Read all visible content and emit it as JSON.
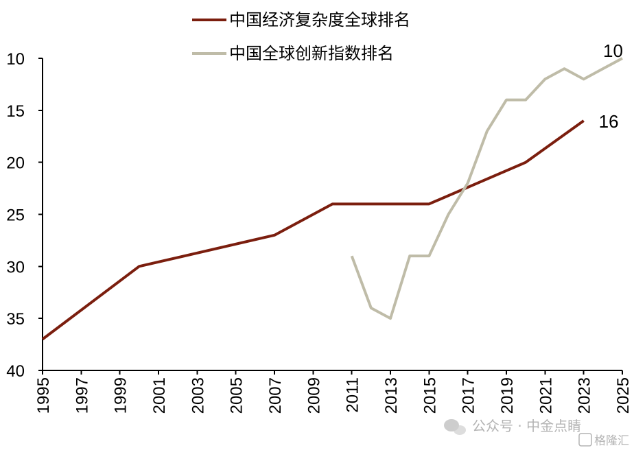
{
  "chart_data": {
    "type": "line",
    "title": "",
    "xlabel": "",
    "ylabel": "",
    "y_inverted": true,
    "ylim": [
      10,
      40
    ],
    "yticks": [
      "10",
      "15",
      "20",
      "25",
      "30",
      "35",
      "40"
    ],
    "xlim": [
      1995,
      2025
    ],
    "xticks": [
      "1995",
      "1997",
      "1999",
      "2001",
      "2003",
      "2005",
      "2007",
      "2009",
      "2011",
      "2013",
      "2015",
      "2017",
      "2019",
      "2021",
      "2023",
      "2025"
    ],
    "grid": false,
    "legend_position": "top",
    "series": [
      {
        "name": "中国经济复杂度全球排名",
        "color": "#7B1E0E",
        "points": [
          [
            1995,
            37
          ],
          [
            2000,
            30
          ],
          [
            2007,
            27
          ],
          [
            2010,
            24
          ],
          [
            2015,
            24
          ],
          [
            2020,
            20
          ],
          [
            2023,
            16
          ]
        ],
        "end_label": "16"
      },
      {
        "name": "中国全球创新指数排名",
        "color": "#BFBCA8",
        "points": [
          [
            2011,
            29
          ],
          [
            2012,
            34
          ],
          [
            2013,
            35
          ],
          [
            2014,
            29
          ],
          [
            2015,
            29
          ],
          [
            2016,
            25
          ],
          [
            2017,
            22
          ],
          [
            2018,
            17
          ],
          [
            2019,
            14
          ],
          [
            2020,
            14
          ],
          [
            2021,
            12
          ],
          [
            2022,
            11
          ],
          [
            2023,
            12
          ],
          [
            2024,
            11
          ],
          [
            2025,
            10
          ]
        ],
        "end_label": "10"
      }
    ]
  },
  "watermark": {
    "text": "公众号 · 中金点睛",
    "logo_text": "格隆汇",
    "icon": "wechat-icon"
  }
}
